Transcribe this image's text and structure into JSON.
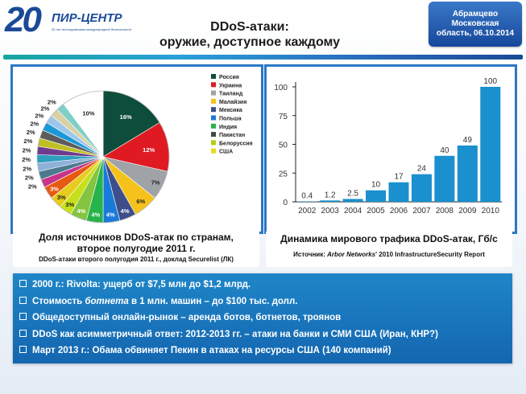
{
  "header": {
    "logo_num": "20",
    "logo_name": "ПИР-ЦЕНТР",
    "logo_sub": "20 лет исследованиям международной безопасности",
    "title_line1": "DDoS-атаки:",
    "title_line2": "оружие,  доступное каждому",
    "badge_line1": "Абрамцево",
    "badge_line2": "Московская",
    "badge_line3": "область, 06.10.2014"
  },
  "pie_caption": {
    "line1": "Доля источников DDoS-атак по странам,",
    "line2": "второе полугодие 2011 г.",
    "source": "DDoS-атаки второго полугодия 2011 г., доклад Securelist (ЛК)"
  },
  "bar_caption": {
    "title": "Динамика мирового трафика DDoS-атак, Гб/с",
    "source_prefix": "Источник: ",
    "source_italic": "Arbor Networks",
    "source_suffix": "' 2010 InfrastructureSecurity Report"
  },
  "bullets": [
    {
      "text": "2000 г.: Rivolta: ущерб от $7,5 млн до $1,2 млрд."
    },
    {
      "pre": "Стоимость ",
      "italic": "ботнета",
      "post": " в 1 млн. машин – до $100 тыс. долл."
    },
    {
      "text": "Общедоступный онлайн-рынок – аренда ботов, ботнетов, троянов"
    },
    {
      "text": "DDoS как асимметричный ответ: 2012-2013 гг. – атаки на банки и СМИ США (Иран, КНР?)"
    },
    {
      "text": "Март 2013 г.: Обама обвиняет Пекин в атаках на ресурсы США (140 компаний)"
    }
  ],
  "chart_data": [
    {
      "type": "pie",
      "legend": [
        "Россия",
        "Украина",
        "Таиланд",
        "Малайзия",
        "Мексика",
        "Польша",
        "Индия",
        "Пакистан",
        "Белоруссия",
        "США"
      ],
      "legend_colors": [
        "#0e4d3b",
        "#e01a22",
        "#9fa3a7",
        "#f5c21b",
        "#3e4e8a",
        "#1a7ad9",
        "#26b34a",
        "#3e4a46",
        "#b8cc12",
        "#e8dc1a"
      ],
      "slices": [
        {
          "label": "16%",
          "value": 16,
          "color": "#0e4d3b"
        },
        {
          "label": "12%",
          "value": 12,
          "color": "#e01a22"
        },
        {
          "label": "7%",
          "value": 7,
          "color": "#9fa3a7"
        },
        {
          "label": "6%",
          "value": 6,
          "color": "#f5c21b"
        },
        {
          "label": "4%",
          "value": 4,
          "color": "#3e4e8a"
        },
        {
          "label": "4%",
          "value": 4,
          "color": "#1a7ad9"
        },
        {
          "label": "4%",
          "value": 4,
          "color": "#26b34a"
        },
        {
          "label": "4%",
          "value": 4,
          "color": "#84c440"
        },
        {
          "label": "3%",
          "value": 3,
          "color": "#c6e01a"
        },
        {
          "label": "3%",
          "value": 3,
          "color": "#e6cc1c"
        },
        {
          "label": "3%",
          "value": 3,
          "color": "#e65a12"
        },
        {
          "label": "2%",
          "value": 2,
          "color": "#c7348c"
        },
        {
          "label": "2%",
          "value": 2,
          "color": "#4c7a8c"
        },
        {
          "label": "2%",
          "value": 2,
          "color": "#8fb0d8"
        },
        {
          "label": "2%",
          "value": 2,
          "color": "#2e9fbf"
        },
        {
          "label": "2%",
          "value": 2,
          "color": "#6e3c8f"
        },
        {
          "label": "2%",
          "value": 2,
          "color": "#bfbf25"
        },
        {
          "label": "2%",
          "value": 2,
          "color": "#5c5c5c"
        },
        {
          "label": "2%",
          "value": 2,
          "color": "#1c98d8"
        },
        {
          "label": "2%",
          "value": 2,
          "color": "#9cc7ea"
        },
        {
          "label": "2%",
          "value": 2,
          "color": "#d8d2a4"
        },
        {
          "label": "2%",
          "value": 2,
          "color": "#7fd0c8"
        },
        {
          "label": "10%",
          "value": 10,
          "color": "#ffffff"
        }
      ]
    },
    {
      "type": "bar",
      "categories": [
        "2002",
        "2003",
        "2004",
        "2005",
        "2006",
        "2007",
        "2008",
        "2009",
        "2010"
      ],
      "values": [
        0.4,
        1.2,
        2.5,
        10,
        17,
        24,
        40,
        49,
        100
      ],
      "value_labels": [
        "0.4",
        "1.2",
        "2.5",
        "10",
        "17",
        "24",
        "40",
        "49",
        "100"
      ],
      "ylim": [
        0,
        100
      ],
      "yticks": [
        "0",
        "25",
        "50",
        "75",
        "100"
      ],
      "ytick_values": [
        0,
        25,
        50,
        75,
        100
      ],
      "bar_color": "#1a90cf"
    }
  ]
}
